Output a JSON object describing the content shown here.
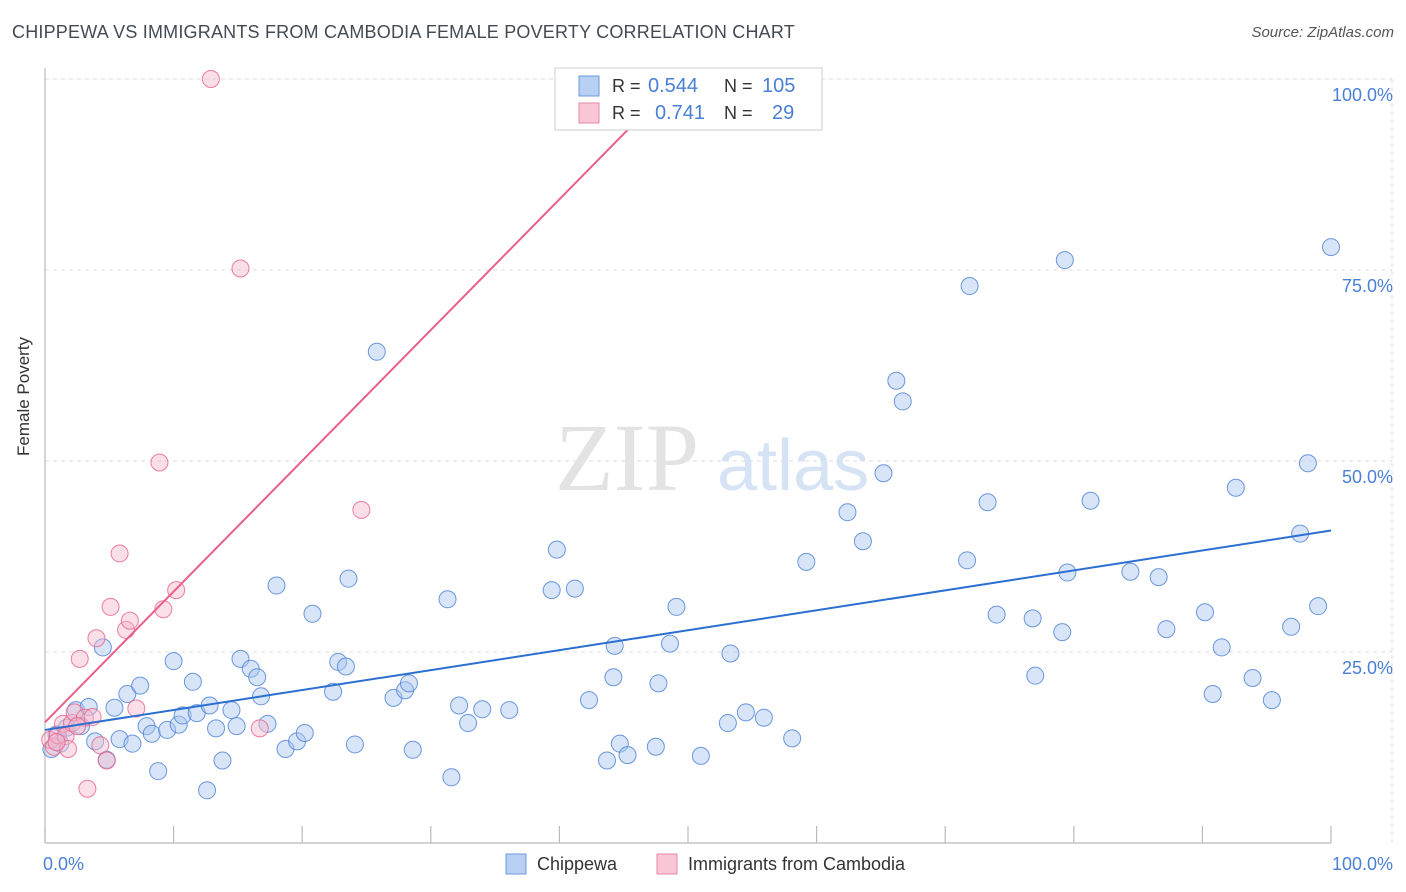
{
  "colors": {
    "blue": "#4a7fd6",
    "blue_fill": "#a9c6f0",
    "pink": "#e8608a",
    "pink_fill": "#f5b8cb",
    "axis_text": "#4a7fd6",
    "grid": "#dddddd"
  },
  "header": {
    "title": "CHIPPEWA VS IMMIGRANTS FROM CAMBODIA FEMALE POVERTY CORRELATION CHART",
    "source": "Source: ZipAtlas.com"
  },
  "watermark": {
    "zip": "ZIP",
    "atlas": "atlas"
  },
  "legend": {
    "rows": [
      {
        "r_label": "R = ",
        "r_value": "0.544",
        "n_label": "N = ",
        "n_value": "105"
      },
      {
        "r_label": "R = ",
        "r_value": "0.741",
        "n_label": "N = ",
        "n_value": "29"
      }
    ]
  },
  "bottom_legend": {
    "series1": "Chippewa",
    "series2": "Immigrants from Cambodia"
  },
  "chart_data": {
    "type": "scatter",
    "title": "CHIPPEWA VS IMMIGRANTS FROM CAMBODIA FEMALE POVERTY CORRELATION CHART",
    "xlabel": "",
    "ylabel": "Female Poverty",
    "xlim": [
      0,
      100
    ],
    "ylim": [
      0,
      100
    ],
    "x_ticks": [
      "0.0%",
      "100.0%"
    ],
    "y_ticks": [
      {
        "value": 25,
        "label": "25.0%"
      },
      {
        "value": 50,
        "label": "50.0%"
      },
      {
        "value": 75,
        "label": "75.0%"
      },
      {
        "value": 100,
        "label": "100.0%"
      }
    ],
    "series": [
      {
        "name": "Chippewa",
        "r": 0.544,
        "n": 105,
        "trend": {
          "x": [
            0,
            100
          ],
          "y": [
            14.8,
            40.9
          ]
        },
        "points": [
          [
            0.5,
            12.3
          ],
          [
            0.9,
            14.2
          ],
          [
            1.2,
            13.0
          ],
          [
            1.7,
            15.1
          ],
          [
            2.4,
            17.4
          ],
          [
            2.8,
            15.3
          ],
          [
            3.4,
            17.8
          ],
          [
            3.9,
            13.3
          ],
          [
            4.5,
            25.6
          ],
          [
            4.8,
            10.9
          ],
          [
            5.4,
            17.7
          ],
          [
            5.8,
            13.6
          ],
          [
            6.4,
            19.5
          ],
          [
            6.8,
            13.0
          ],
          [
            7.4,
            20.6
          ],
          [
            7.9,
            15.3
          ],
          [
            8.3,
            14.3
          ],
          [
            8.8,
            9.4
          ],
          [
            9.5,
            14.8
          ],
          [
            10.0,
            23.8
          ],
          [
            10.4,
            15.5
          ],
          [
            10.7,
            16.7
          ],
          [
            11.5,
            21.1
          ],
          [
            11.8,
            17.0
          ],
          [
            12.6,
            6.9
          ],
          [
            12.8,
            18.0
          ],
          [
            13.3,
            15.0
          ],
          [
            13.8,
            10.8
          ],
          [
            14.5,
            17.4
          ],
          [
            14.9,
            15.3
          ],
          [
            15.2,
            24.1
          ],
          [
            16.0,
            22.8
          ],
          [
            16.5,
            21.7
          ],
          [
            16.8,
            19.2
          ],
          [
            17.3,
            15.6
          ],
          [
            18.0,
            33.7
          ],
          [
            18.7,
            12.3
          ],
          [
            19.6,
            13.3
          ],
          [
            20.2,
            14.4
          ],
          [
            20.8,
            30.0
          ],
          [
            22.4,
            19.8
          ],
          [
            22.8,
            23.7
          ],
          [
            23.4,
            23.1
          ],
          [
            23.6,
            34.6
          ],
          [
            24.1,
            12.9
          ],
          [
            25.8,
            64.3
          ],
          [
            27.1,
            19.0
          ],
          [
            28.0,
            20.0
          ],
          [
            28.3,
            20.9
          ],
          [
            28.6,
            12.2
          ],
          [
            31.3,
            31.9
          ],
          [
            31.6,
            8.6
          ],
          [
            32.2,
            18.0
          ],
          [
            32.9,
            15.7
          ],
          [
            34.0,
            17.5
          ],
          [
            36.1,
            17.4
          ],
          [
            39.4,
            33.1
          ],
          [
            39.8,
            38.4
          ],
          [
            42.3,
            18.7
          ],
          [
            43.7,
            10.8
          ],
          [
            44.2,
            21.7
          ],
          [
            44.3,
            25.8
          ],
          [
            44.7,
            13.0
          ],
          [
            45.3,
            11.5
          ],
          [
            47.5,
            12.6
          ],
          [
            47.7,
            20.9
          ],
          [
            48.6,
            26.1
          ],
          [
            49.1,
            30.9
          ],
          [
            51.0,
            11.4
          ],
          [
            53.1,
            15.7
          ],
          [
            53.3,
            24.8
          ],
          [
            54.5,
            17.1
          ],
          [
            55.9,
            16.4
          ],
          [
            58.1,
            13.7
          ],
          [
            59.2,
            36.8
          ],
          [
            62.4,
            43.3
          ],
          [
            63.6,
            39.5
          ],
          [
            65.2,
            48.4
          ],
          [
            66.2,
            60.5
          ],
          [
            66.7,
            57.8
          ],
          [
            71.7,
            37.0
          ],
          [
            71.9,
            72.9
          ],
          [
            73.3,
            44.6
          ],
          [
            74.0,
            29.9
          ],
          [
            76.8,
            29.4
          ],
          [
            77.0,
            21.9
          ],
          [
            79.1,
            27.6
          ],
          [
            79.3,
            76.3
          ],
          [
            79.5,
            35.4
          ],
          [
            81.3,
            44.8
          ],
          [
            84.4,
            35.5
          ],
          [
            86.6,
            34.8
          ],
          [
            87.2,
            28.0
          ],
          [
            90.2,
            30.2
          ],
          [
            90.8,
            19.5
          ],
          [
            91.5,
            25.6
          ],
          [
            92.6,
            46.5
          ],
          [
            93.9,
            21.6
          ],
          [
            95.4,
            18.7
          ],
          [
            96.9,
            28.3
          ],
          [
            97.6,
            40.5
          ],
          [
            98.2,
            49.7
          ],
          [
            99.0,
            31.0
          ],
          [
            100.0,
            78.0
          ],
          [
            41.2,
            33.3
          ]
        ]
      },
      {
        "name": "Immigrants from Cambodia",
        "r": 0.741,
        "n": 29,
        "trend": {
          "x": [
            0,
            49.2
          ],
          "y": [
            15.8,
            100.0
          ]
        },
        "points": [
          [
            0.4,
            13.5
          ],
          [
            0.7,
            12.6
          ],
          [
            1.0,
            14.1
          ],
          [
            1.4,
            15.6
          ],
          [
            1.6,
            14.0
          ],
          [
            1.8,
            12.3
          ],
          [
            2.1,
            15.7
          ],
          [
            2.3,
            17.1
          ],
          [
            2.7,
            24.1
          ],
          [
            3.1,
            16.4
          ],
          [
            3.3,
            7.1
          ],
          [
            3.7,
            16.5
          ],
          [
            4.0,
            26.8
          ],
          [
            4.3,
            12.8
          ],
          [
            4.8,
            10.8
          ],
          [
            5.1,
            30.9
          ],
          [
            5.8,
            37.9
          ],
          [
            6.3,
            27.9
          ],
          [
            6.6,
            29.1
          ],
          [
            7.1,
            17.6
          ],
          [
            8.9,
            49.8
          ],
          [
            9.2,
            30.6
          ],
          [
            10.2,
            33.1
          ],
          [
            12.9,
            100.0
          ],
          [
            15.2,
            75.2
          ],
          [
            16.7,
            15.0
          ],
          [
            24.6,
            43.6
          ],
          [
            0.9,
            13.2
          ],
          [
            2.5,
            15.3
          ]
        ]
      }
    ]
  }
}
